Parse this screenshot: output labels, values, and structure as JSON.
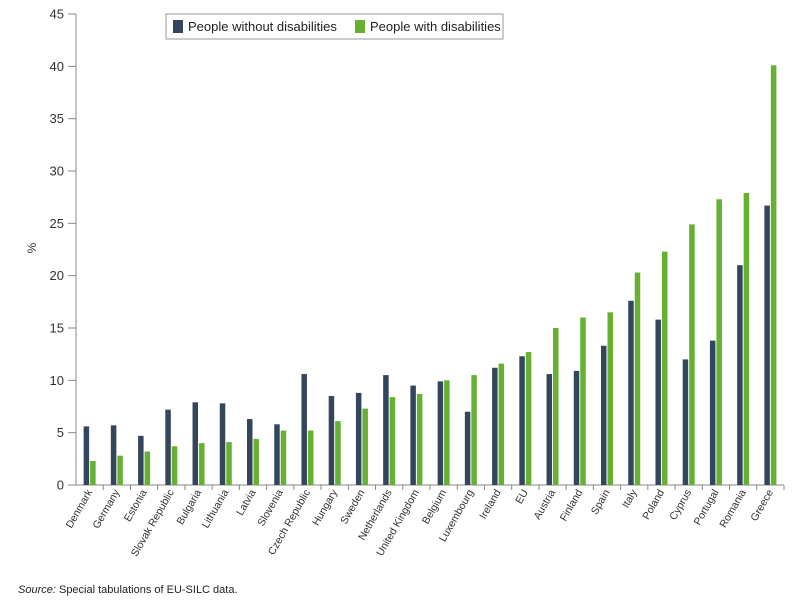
{
  "chart_data": {
    "type": "bar",
    "ylabel": "%",
    "ylim": [
      0,
      45
    ],
    "yticks": [
      0,
      5,
      10,
      15,
      20,
      25,
      30,
      35,
      40,
      45
    ],
    "grid": false,
    "legend_position": "top",
    "categories": [
      "Denmark",
      "Germany",
      "Estonia",
      "Slovak Republic",
      "Bulgaria",
      "Lithuania",
      "Latvia",
      "Slovenia",
      "Czech Republic",
      "Hungary",
      "Sweden",
      "Netherlands",
      "United Kingdom",
      "Belgium",
      "Luxembourg",
      "Ireland",
      "EU",
      "Austria",
      "Finland",
      "Spain",
      "Italy",
      "Poland",
      "Cyprus",
      "Portugal",
      "Romania",
      "Greece"
    ],
    "series": [
      {
        "name": "People without disabilities",
        "color": "#34465e",
        "values": [
          5.6,
          5.7,
          4.7,
          7.2,
          7.9,
          7.8,
          6.3,
          5.8,
          10.6,
          8.5,
          8.8,
          10.5,
          9.5,
          9.9,
          7.0,
          11.2,
          12.3,
          10.6,
          10.9,
          13.3,
          17.6,
          15.8,
          12.0,
          13.8,
          21.0,
          26.7
        ]
      },
      {
        "name": "People with disabilities",
        "color": "#66b032",
        "values": [
          2.3,
          2.8,
          3.2,
          3.7,
          4.0,
          4.1,
          4.4,
          5.2,
          5.2,
          6.1,
          7.3,
          8.4,
          8.7,
          10.0,
          10.5,
          11.6,
          12.7,
          15.0,
          16.0,
          16.5,
          20.3,
          22.3,
          24.9,
          27.3,
          27.9,
          40.1
        ]
      }
    ]
  },
  "source": {
    "prefix": "Source:",
    "text": " Special tabulations of EU-SILC data."
  }
}
